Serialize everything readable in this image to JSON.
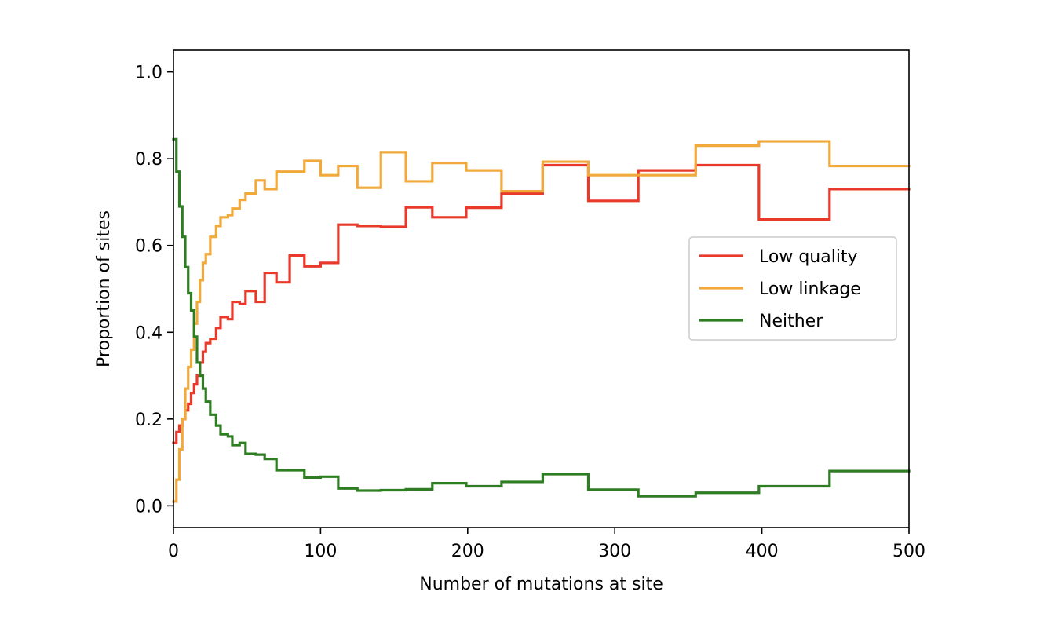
{
  "chart_data": {
    "type": "line",
    "step": "post",
    "xlabel": "Number of mutations at site",
    "ylabel": "Proportion of sites",
    "xlim": [
      0,
      500
    ],
    "ylim": [
      -0.05,
      1.05
    ],
    "xticks": [
      0,
      100,
      200,
      300,
      400,
      500
    ],
    "yticks": [
      0.0,
      0.2,
      0.4,
      0.6,
      0.8,
      1.0
    ],
    "xtick_labels": [
      "0",
      "100",
      "200",
      "300",
      "400",
      "500"
    ],
    "ytick_labels": [
      "0.0",
      "0.2",
      "0.4",
      "0.6",
      "0.8",
      "1.0"
    ],
    "grid": false,
    "legend_position": "center-right",
    "series": [
      {
        "name": "Low quality",
        "color": "#e8392a",
        "points": [
          [
            0,
            0.145
          ],
          [
            2,
            0.17
          ],
          [
            4,
            0.185
          ],
          [
            6,
            0.2
          ],
          [
            8,
            0.22
          ],
          [
            10,
            0.235
          ],
          [
            12,
            0.26
          ],
          [
            14,
            0.28
          ],
          [
            16,
            0.3
          ],
          [
            18,
            0.33
          ],
          [
            20,
            0.355
          ],
          [
            22,
            0.375
          ],
          [
            25,
            0.385
          ],
          [
            29,
            0.41
          ],
          [
            32,
            0.435
          ],
          [
            37,
            0.43
          ],
          [
            40,
            0.47
          ],
          [
            45,
            0.465
          ],
          [
            49,
            0.495
          ],
          [
            56,
            0.47
          ],
          [
            62,
            0.537
          ],
          [
            70,
            0.515
          ],
          [
            79,
            0.577
          ],
          [
            89,
            0.552
          ],
          [
            100,
            0.56
          ],
          [
            112,
            0.648
          ],
          [
            125,
            0.645
          ],
          [
            141,
            0.643
          ],
          [
            158,
            0.688
          ],
          [
            176,
            0.665
          ],
          [
            199,
            0.687
          ],
          [
            223,
            0.72
          ],
          [
            251,
            0.785
          ],
          [
            282,
            0.703
          ],
          [
            316,
            0.773
          ],
          [
            355,
            0.785
          ],
          [
            398,
            0.66
          ],
          [
            446,
            0.73
          ],
          [
            500,
            0.73
          ]
        ]
      },
      {
        "name": "Low linkage",
        "color": "#f0a93a",
        "points": [
          [
            0,
            0.01
          ],
          [
            2,
            0.06
          ],
          [
            4,
            0.13
          ],
          [
            6,
            0.2
          ],
          [
            8,
            0.27
          ],
          [
            10,
            0.32
          ],
          [
            12,
            0.36
          ],
          [
            14,
            0.42
          ],
          [
            16,
            0.47
          ],
          [
            18,
            0.52
          ],
          [
            20,
            0.56
          ],
          [
            22,
            0.58
          ],
          [
            25,
            0.62
          ],
          [
            29,
            0.645
          ],
          [
            32,
            0.665
          ],
          [
            37,
            0.67
          ],
          [
            40,
            0.685
          ],
          [
            45,
            0.705
          ],
          [
            49,
            0.72
          ],
          [
            56,
            0.75
          ],
          [
            62,
            0.73
          ],
          [
            70,
            0.77
          ],
          [
            79,
            0.77
          ],
          [
            89,
            0.795
          ],
          [
            100,
            0.762
          ],
          [
            112,
            0.783
          ],
          [
            125,
            0.733
          ],
          [
            141,
            0.815
          ],
          [
            158,
            0.748
          ],
          [
            176,
            0.79
          ],
          [
            199,
            0.773
          ],
          [
            223,
            0.725
          ],
          [
            251,
            0.793
          ],
          [
            282,
            0.762
          ],
          [
            316,
            0.762
          ],
          [
            355,
            0.83
          ],
          [
            398,
            0.84
          ],
          [
            446,
            0.783
          ],
          [
            500,
            0.783
          ]
        ]
      },
      {
        "name": "Neither",
        "color": "#2e7d22",
        "points": [
          [
            0,
            0.845
          ],
          [
            2,
            0.77
          ],
          [
            4,
            0.69
          ],
          [
            6,
            0.62
          ],
          [
            8,
            0.55
          ],
          [
            10,
            0.49
          ],
          [
            12,
            0.45
          ],
          [
            14,
            0.39
          ],
          [
            16,
            0.33
          ],
          [
            18,
            0.3
          ],
          [
            20,
            0.27
          ],
          [
            22,
            0.24
          ],
          [
            25,
            0.21
          ],
          [
            29,
            0.185
          ],
          [
            32,
            0.165
          ],
          [
            37,
            0.16
          ],
          [
            40,
            0.14
          ],
          [
            45,
            0.145
          ],
          [
            49,
            0.12
          ],
          [
            56,
            0.118
          ],
          [
            62,
            0.108
          ],
          [
            70,
            0.082
          ],
          [
            79,
            0.082
          ],
          [
            89,
            0.065
          ],
          [
            100,
            0.067
          ],
          [
            112,
            0.04
          ],
          [
            125,
            0.035
          ],
          [
            141,
            0.036
          ],
          [
            158,
            0.038
          ],
          [
            176,
            0.052
          ],
          [
            199,
            0.045
          ],
          [
            223,
            0.055
          ],
          [
            251,
            0.073
          ],
          [
            282,
            0.037
          ],
          [
            316,
            0.022
          ],
          [
            355,
            0.03
          ],
          [
            398,
            0.045
          ],
          [
            446,
            0.08
          ],
          [
            500,
            0.08
          ]
        ]
      }
    ]
  }
}
